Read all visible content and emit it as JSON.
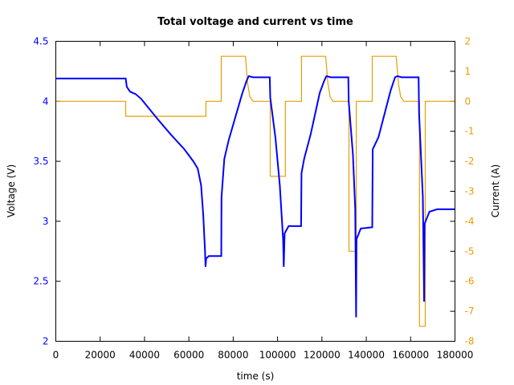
{
  "chart_data": {
    "type": "line",
    "title": "Total voltage and current vs time",
    "xlabel": "time (s)",
    "ylabel": "Voltage (V)",
    "y2label": "Current (A)",
    "xlim": [
      0,
      180000
    ],
    "ylim": [
      2,
      4.5
    ],
    "y2lim": [
      -8,
      2
    ],
    "x_ticks": [
      "0",
      "20000",
      "40000",
      "60000",
      "80000",
      "100000",
      "120000",
      "140000",
      "160000",
      "180000"
    ],
    "y_ticks": [
      "2",
      "2.5",
      "3",
      "3.5",
      "4",
      "4.5"
    ],
    "y2_ticks": [
      "-8",
      "-7",
      "-6",
      "-5",
      "-4",
      "-3",
      "-2",
      "-1",
      "0",
      "1",
      "2"
    ],
    "grid": false,
    "legend": "none",
    "colors": {
      "voltage": "#0000ff",
      "current": "#e69f00",
      "axes": "#000000"
    },
    "series": [
      {
        "name": "Voltage",
        "axis": "left",
        "color": "#0000ff",
        "x": [
          0,
          31500,
          32000,
          33500,
          36000,
          38500,
          42000,
          46000,
          52000,
          58000,
          62000,
          64000,
          65500,
          66500,
          67300,
          67500,
          67800,
          69000,
          74600,
          74700,
          76000,
          78000,
          84000,
          86000,
          87000,
          89000,
          96500,
          96700,
          99000,
          101000,
          102500,
          102800,
          103200,
          105000,
          110600,
          110800,
          112000,
          115000,
          119000,
          121000,
          122000,
          124000,
          131900,
          132100,
          134000,
          135000,
          135400,
          135600,
          137500,
          142700,
          142900,
          145500,
          151000,
          153000,
          154000,
          156000,
          163600,
          163800,
          165500,
          166100,
          166300,
          168500,
          172000,
          180000
        ],
        "values": [
          4.19,
          4.19,
          4.12,
          4.08,
          4.06,
          4.02,
          3.94,
          3.85,
          3.72,
          3.6,
          3.5,
          3.44,
          3.3,
          3.05,
          2.75,
          2.62,
          2.69,
          2.71,
          2.71,
          3.2,
          3.52,
          3.68,
          4.06,
          4.17,
          4.21,
          4.2,
          4.2,
          4.03,
          3.7,
          3.3,
          2.85,
          2.62,
          2.9,
          2.96,
          2.96,
          3.4,
          3.52,
          3.73,
          4.07,
          4.17,
          4.21,
          4.2,
          4.2,
          4.0,
          3.55,
          3.1,
          2.2,
          2.85,
          2.94,
          2.95,
          3.6,
          3.7,
          4.09,
          4.2,
          4.21,
          4.2,
          4.2,
          3.9,
          3.2,
          2.33,
          2.98,
          3.08,
          3.1,
          3.1
        ]
      },
      {
        "name": "Current",
        "axis": "right",
        "color": "#e69f00",
        "x": [
          0,
          31500,
          31500,
          67700,
          67700,
          74600,
          74600,
          85500,
          86500,
          87500,
          89000,
          96700,
          96700,
          103500,
          103500,
          110800,
          110800,
          121700,
          122700,
          123700,
          125000,
          132200,
          132200,
          135500,
          135500,
          142700,
          142700,
          153500,
          154500,
          155500,
          157000,
          164000,
          164000,
          166600,
          166600,
          180000
        ],
        "values": [
          0,
          0,
          -0.5,
          -0.5,
          0,
          0,
          1.5,
          1.5,
          0.6,
          0.15,
          0,
          0,
          -2.5,
          -2.5,
          0,
          0,
          1.5,
          1.5,
          0.6,
          0.15,
          0,
          0,
          -5,
          -5,
          0,
          0,
          1.5,
          1.5,
          0.6,
          0.15,
          0,
          0,
          -7.5,
          -7.5,
          0,
          0
        ]
      }
    ]
  }
}
